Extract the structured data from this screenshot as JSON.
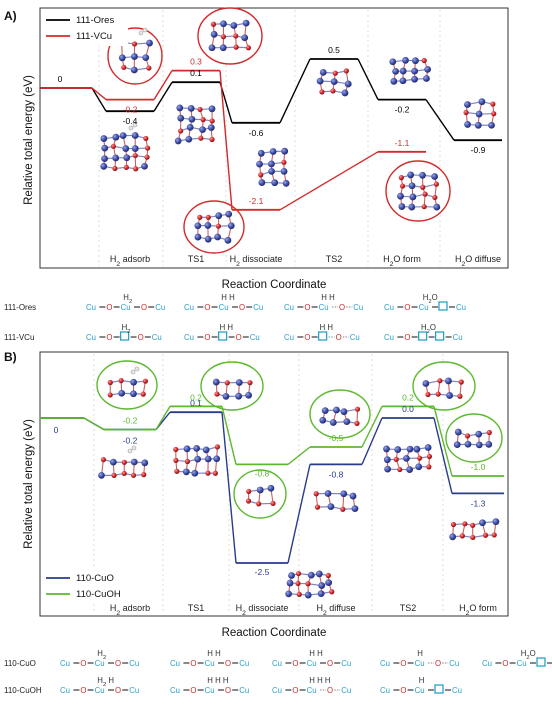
{
  "chart_data": [
    {
      "panel": "A)",
      "type": "line",
      "ylabel": "Relative total energy (eV)",
      "xlabel": "Reaction Coordinate",
      "categories": [
        "",
        "H2 adsorb",
        "TS1",
        "H2 dissociate",
        "TS2",
        "H2O form",
        "H2O diffuse"
      ],
      "legend_position": "top-left",
      "series": [
        {
          "name": "111-Ores",
          "color": "#000000",
          "values": [
            0,
            -0.4,
            0.1,
            -0.6,
            0.5,
            -0.2,
            -0.9
          ],
          "labels": [
            "0",
            "-0.4",
            "0.1",
            "-0.6",
            "0.5",
            "-0.2",
            "-0.9"
          ]
        },
        {
          "name": "111-VCu",
          "color": "#d42a2a",
          "values": [
            0,
            -0.2,
            0.3,
            -2.1,
            null,
            -1.1,
            null
          ],
          "labels": [
            "",
            "-0.2",
            "0.3",
            "-2.1",
            "",
            "-1.1",
            ""
          ]
        }
      ],
      "schematic": {
        "rows": [
          {
            "name": "111-Ores",
            "states": [
              "Cu-O-Cu-O-Cu",
              "Cu-O-Cu-O-Cu",
              "Cu-O-Cu~O~Cu",
              "Cu-O-Cu-□-Cu"
            ],
            "tops": [
              "H2",
              "H H",
              "H H",
              "H2O"
            ]
          },
          {
            "name": "111-VCu",
            "states": [
              "Cu-O-□-O-Cu",
              "Cu-O-□-O-Cu",
              "Cu-O-□~O~Cu",
              "Cu-O-□-□-Cu"
            ],
            "tops": [
              "H2",
              "H H",
              "H H",
              "H2O"
            ]
          }
        ]
      }
    },
    {
      "panel": "B)",
      "type": "line",
      "ylabel": "Relative total energy (eV)",
      "xlabel": "Reaction Coordinate",
      "categories": [
        "",
        "H2 adsorb",
        "TS1",
        "H2 dissociate",
        "H2 diffuse",
        "TS2",
        "H2O form"
      ],
      "legend_position": "bottom-left",
      "series": [
        {
          "name": "110-CuO",
          "color": "#283c8c",
          "values": [
            0,
            -0.2,
            0.1,
            -2.5,
            -0.8,
            0.0,
            -1.3
          ],
          "labels": [
            "0",
            "-0.2",
            "0.1",
            "-2.5",
            "-0.8",
            "0.0",
            "-1.3"
          ]
        },
        {
          "name": "110-CuOH",
          "color": "#5cb82e",
          "values": [
            0,
            -0.2,
            0.2,
            -0.8,
            -0.5,
            0.2,
            -1.0
          ],
          "labels": [
            "",
            "-0.2",
            "0.2",
            "-0.8",
            "-0.5",
            "0.2",
            "-1.0"
          ]
        }
      ],
      "schematic": {
        "rows": [
          {
            "name": "110-CuO",
            "states": [
              "Cu-O-Cu-O-Cu",
              "Cu-O-Cu-O-Cu",
              "Cu-O-Cu-O-Cu",
              "Cu-O-Cu~O~Cu",
              "Cu-O-Cu-□-Cu"
            ],
            "tops": [
              "H2",
              "H H",
              "H H",
              "H",
              "H2O"
            ]
          },
          {
            "name": "110-CuOH",
            "states": [
              "Cu-O-Cu-O-Cu",
              "Cu-O-Cu-O-Cu",
              "Cu-O-Cu~O~Cu",
              "Cu-O-Cu-□-Cu"
            ],
            "tops": [
              "H2 H",
              "H H H",
              "H H H",
              "H"
            ]
          }
        ]
      }
    }
  ],
  "colors": {
    "ores": "#000000",
    "vcu": "#d42a2a",
    "cuo": "#283c8c",
    "cuoh": "#5cb82e",
    "cu_atom": "#3f4fa8",
    "o_atom": "#d42a2a",
    "vacancy": "#2aa0c8"
  }
}
